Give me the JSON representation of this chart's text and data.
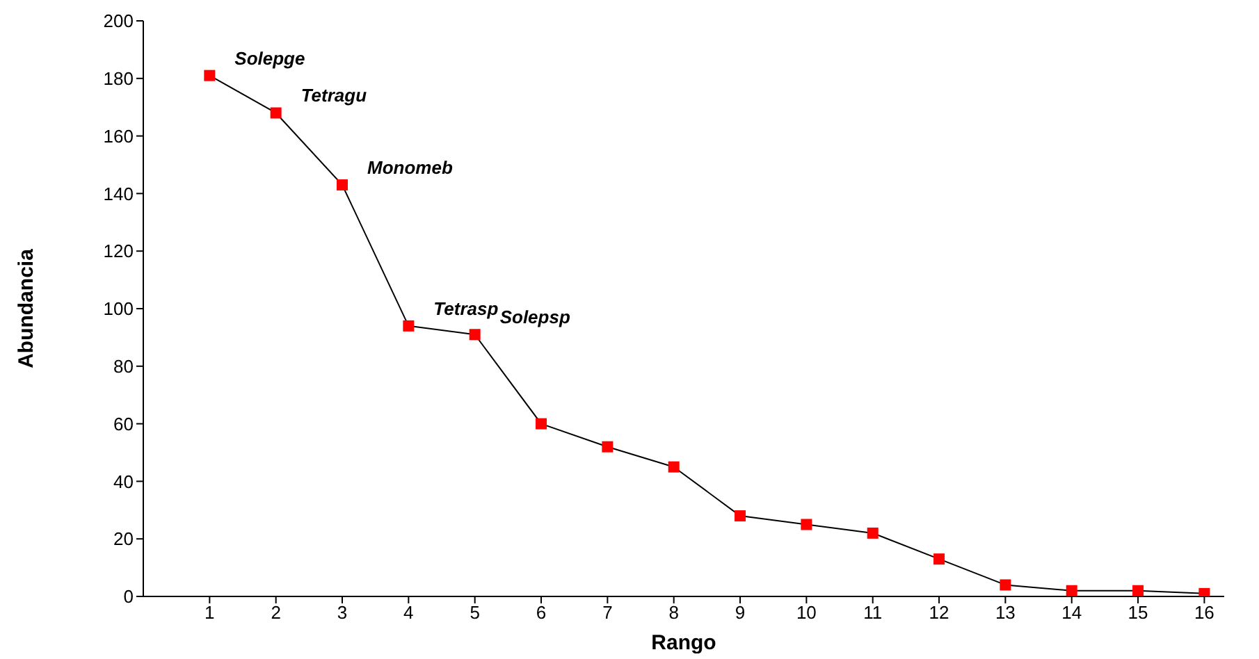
{
  "chart_data": {
    "type": "line",
    "xlabel": "Rango",
    "ylabel": "Abundancia",
    "x": [
      1,
      2,
      3,
      4,
      5,
      6,
      7,
      8,
      9,
      10,
      11,
      12,
      13,
      14,
      15,
      16
    ],
    "series": [
      {
        "color": "#000000",
        "colors": [
          "#ff0000",
          "#ff0000",
          "#ff0000",
          "#ff0000",
          "#ff0000",
          "#ff0000",
          "#ff0000",
          "#ff0000",
          "#ff0000",
          "#ff0000",
          "#ff0000",
          "#ff0000",
          "#ff0000",
          "#ff0000",
          "#ff0000",
          "#ff0000"
        ],
        "values": [
          181,
          168,
          143,
          94,
          91,
          60,
          52,
          45,
          28,
          25,
          22,
          13,
          4,
          2,
          2,
          1
        ]
      }
    ],
    "xlim": [
      0,
      16.3
    ],
    "xticks": [
      1,
      2,
      3,
      4,
      5,
      6,
      7,
      8,
      9,
      10,
      11,
      12,
      13,
      14,
      15,
      16
    ],
    "ylim": [
      0,
      200
    ],
    "yticks": [
      0,
      20,
      40,
      60,
      80,
      100,
      120,
      140,
      160,
      180,
      200
    ],
    "annotations": [
      {
        "text": "Solepge",
        "x": 1,
        "y": 181
      },
      {
        "text": "Tetragu",
        "x": 2,
        "y": 168
      },
      {
        "text": "Monomeb",
        "x": 3,
        "y": 143
      },
      {
        "text": "Tetrasp",
        "x": 4,
        "y": 94
      },
      {
        "text": "Solepsp",
        "x": 5,
        "y": 91
      }
    ],
    "grid": false,
    "marker": "square",
    "line_style": "solid",
    "legend": false
  }
}
